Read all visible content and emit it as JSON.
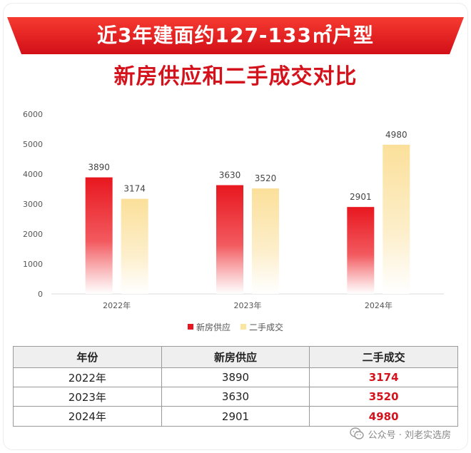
{
  "banner": {
    "title": "近3年建面约127-133㎡户型"
  },
  "subtitle": "新房供应和二手成交对比",
  "colors": {
    "primary": "#e8171f",
    "secondary": "#fbe5a0",
    "highlight": "#d4121c"
  },
  "chart_data": {
    "type": "bar",
    "title": "新房供应和二手成交对比",
    "categories": [
      "2022年",
      "2023年",
      "2024年"
    ],
    "series": [
      {
        "name": "新房供应",
        "values": [
          3890,
          3630,
          2901
        ]
      },
      {
        "name": "二手成交",
        "values": [
          3174,
          3520,
          4980
        ]
      }
    ],
    "ylim": [
      0,
      6000
    ],
    "yticks": [
      "0",
      "1000",
      "2000",
      "3000",
      "4000",
      "5000",
      "6000"
    ],
    "value_labels": [
      [
        "3890",
        "3630",
        "2901"
      ],
      [
        "3174",
        "3520",
        "4980"
      ]
    ],
    "legend": "bottom",
    "grid": false
  },
  "table": {
    "headers": [
      "年份",
      "新房供应",
      "二手成交"
    ],
    "rows": [
      [
        "2022年",
        "3890",
        "3174"
      ],
      [
        "2023年",
        "3630",
        "3520"
      ],
      [
        "2024年",
        "2901",
        "4980"
      ]
    ]
  },
  "footer": {
    "text": "公众号 · 刘老实选房",
    "icon": "wechat-icon"
  }
}
